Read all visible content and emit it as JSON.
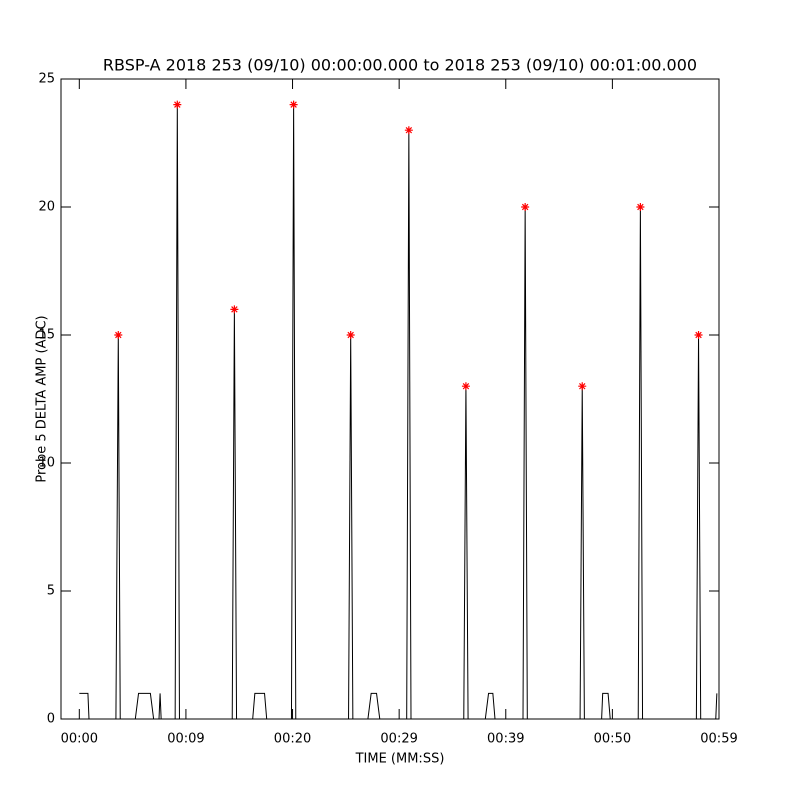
{
  "chart_data": {
    "type": "line",
    "title": "RBSP-A 2018 253 (09/10) 00:00:00.000 to 2018 253 (09/10) 00:01:00.000",
    "x_label": "TIME (MM:SS)",
    "y_label": "Probe 5 DELTA AMP (ADC)",
    "xlim": [
      -1.7,
      59.4
    ],
    "xticks": [
      {
        "value": 0,
        "label": "00:00"
      },
      {
        "value": 9.9,
        "label": "00:09"
      },
      {
        "value": 19.8,
        "label": "00:20"
      },
      {
        "value": 29.7,
        "label": "00:29"
      },
      {
        "value": 39.6,
        "label": "00:39"
      },
      {
        "value": 49.5,
        "label": "00:50"
      },
      {
        "value": 59.4,
        "label": "00:59"
      }
    ],
    "ylim": [
      0,
      25
    ],
    "yticks": [
      0,
      5,
      10,
      15,
      20,
      25
    ],
    "grid": false,
    "series": [
      {
        "color": "#000000",
        "marker": "none",
        "x": [
          0.0,
          0.1,
          0.8,
          0.9,
          3.4,
          3.62,
          3.8,
          5.2,
          5.5,
          6.6,
          6.9,
          7.4,
          7.5,
          7.6,
          8.9,
          9.1,
          9.3,
          14.2,
          14.4,
          14.6,
          16.1,
          16.3,
          17.2,
          17.4,
          19.7,
          19.9,
          20.1,
          25.0,
          25.2,
          25.4,
          26.8,
          27.1,
          27.6,
          27.9,
          30.4,
          30.6,
          30.8,
          35.7,
          35.9,
          36.1,
          37.7,
          38.0,
          38.4,
          38.6,
          41.2,
          41.4,
          41.6,
          46.5,
          46.7,
          46.9,
          48.5,
          48.6,
          49.1,
          49.3,
          51.9,
          52.1,
          52.3,
          57.3,
          57.5,
          57.7,
          59.1,
          59.2
        ],
        "values": [
          1,
          1,
          1,
          0,
          0,
          15,
          0,
          0,
          1,
          1,
          0,
          0,
          1,
          0,
          0,
          24,
          0,
          0,
          16,
          0,
          0,
          1,
          1,
          0,
          0,
          24,
          0,
          0,
          15,
          0,
          0,
          1,
          1,
          0,
          0,
          23,
          0,
          0,
          13,
          0,
          0,
          1,
          1,
          0,
          0,
          20,
          0,
          0,
          13,
          0,
          0,
          1,
          1,
          0,
          0,
          20,
          0,
          0,
          15,
          0,
          0,
          1
        ]
      },
      {
        "color": "#ff0000",
        "marker": "asterisk",
        "x": [
          3.62,
          9.1,
          14.4,
          19.9,
          25.2,
          30.6,
          35.9,
          41.4,
          46.7,
          52.1,
          57.5
        ],
        "values": [
          15,
          24,
          16,
          24,
          15,
          23,
          13,
          20,
          13,
          20,
          15
        ]
      }
    ]
  }
}
